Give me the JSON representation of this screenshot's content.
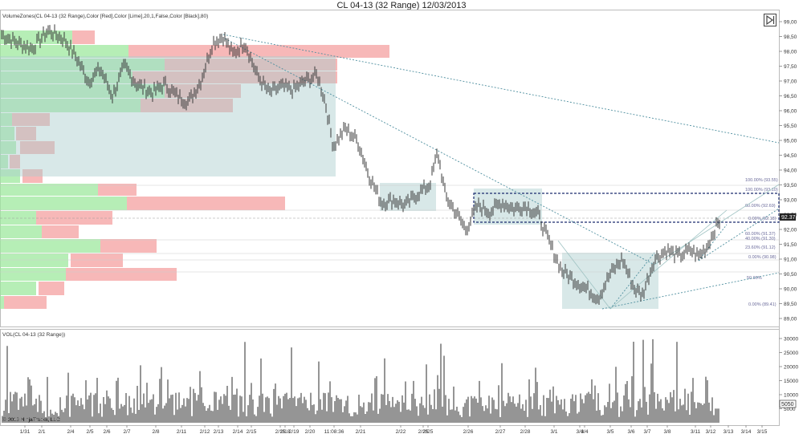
{
  "window": {
    "title": "CL 04-13 (32 Range)  12/03/2013"
  },
  "price_panel": {
    "label": "VolumeZones(CL 04-13 (32 Range),Color [Red],Color [Lime],20,1,False,Color [Black],80)",
    "current_price_label": "92.37",
    "fib_labels": [
      "100.00% (93.55)",
      "100.00% (93.10)",
      "60.00% (92.69)",
      "0.00% (92.18)",
      "60.00% (91.37)",
      "40.00% (91.30)",
      "23.60% (91.12)",
      "0.00% (90.98)",
      "50.00%",
      "0.00% (89.41)"
    ]
  },
  "volume_panel": {
    "label": "VOL(CL 04-13 (32 Range))",
    "last_value_label": "5050"
  },
  "copyright": "© 2013 NinjaTrader, LLC",
  "colors": {
    "buy_zone": "#9ee89e",
    "sell_zone": "#f4a0a0",
    "value_area": "#a9cccc",
    "trendline": "#4f8f9f",
    "bars": "#3a3a3a",
    "fib_box": "#1a2a6e"
  },
  "chart_data": [
    {
      "type": "line",
      "title": "CL 04-13 (32 Range)  12/03/2013",
      "ylim": [
        88.5,
        99.25
      ],
      "y_ticks": [
        99.0,
        98.5,
        98.0,
        97.5,
        97.0,
        96.5,
        96.0,
        95.5,
        95.0,
        94.5,
        94.0,
        93.5,
        93.0,
        92.5,
        92.0,
        91.5,
        91.0,
        90.5,
        90.0,
        89.5,
        89.0
      ],
      "y_tick_labels": [
        "99,00",
        "98,50",
        "98,00",
        "97,50",
        "97,00",
        "96,50",
        "96,00",
        "95,50",
        "95,00",
        "94,50",
        "94,00",
        "93,50",
        "93,00",
        "92,50",
        "92,00",
        "91,50",
        "91,00",
        "90,50",
        "90,00",
        "89,50",
        "89,00"
      ],
      "x_tick_labels": [
        "1/31",
        "2/1",
        "2/4",
        "2/5",
        "2/6",
        "2/7",
        "2/8",
        "2/11",
        "2/12",
        "2/13",
        "2/14",
        "2/15",
        "2/15",
        "2/18",
        "2/19",
        "2/20",
        "11:08:36",
        "2/21",
        "2/22",
        "2/25",
        "2/25",
        "2/26",
        "2/27",
        "2/28",
        "3/1",
        "3/4",
        "3/4",
        "3/5",
        "3/6",
        "3/7",
        "3/8",
        "3/11",
        "3/12",
        "3/13",
        "3/14",
        "3/15"
      ],
      "close_anchors": [
        [
          0,
          98.6
        ],
        [
          20,
          98.3
        ],
        [
          40,
          98.1
        ],
        [
          60,
          98.7
        ],
        [
          80,
          98.4
        ],
        [
          95,
          97.8
        ],
        [
          110,
          97.0
        ],
        [
          125,
          97.4
        ],
        [
          140,
          96.5
        ],
        [
          155,
          97.5
        ],
        [
          170,
          96.9
        ],
        [
          190,
          96.6
        ],
        [
          205,
          96.9
        ],
        [
          220,
          96.5
        ],
        [
          235,
          96.3
        ],
        [
          250,
          97.0
        ],
        [
          265,
          98.3
        ],
        [
          278,
          98.5
        ],
        [
          290,
          97.9
        ],
        [
          305,
          98.3
        ],
        [
          320,
          97.2
        ],
        [
          335,
          96.6
        ],
        [
          350,
          96.8
        ],
        [
          365,
          96.7
        ],
        [
          380,
          97.0
        ],
        [
          395,
          97.2
        ],
        [
          405,
          96.3
        ],
        [
          415,
          94.8
        ],
        [
          430,
          95.4
        ],
        [
          445,
          95.0
        ],
        [
          460,
          93.8
        ],
        [
          475,
          92.9
        ],
        [
          490,
          93.0
        ],
        [
          505,
          92.8
        ],
        [
          520,
          93.2
        ],
        [
          535,
          93.5
        ],
        [
          545,
          94.6
        ],
        [
          555,
          93.1
        ],
        [
          565,
          92.7
        ],
        [
          580,
          92.0
        ],
        [
          595,
          92.8
        ],
        [
          610,
          92.6
        ],
        [
          625,
          92.9
        ],
        [
          640,
          92.7
        ],
        [
          655,
          92.8
        ],
        [
          670,
          92.5
        ],
        [
          685,
          91.5
        ],
        [
          700,
          90.6
        ],
        [
          715,
          90.3
        ],
        [
          730,
          90.0
        ],
        [
          745,
          89.7
        ],
        [
          760,
          90.5
        ],
        [
          775,
          91.0
        ],
        [
          790,
          90.0
        ],
        [
          800,
          89.8
        ],
        [
          815,
          91.0
        ],
        [
          830,
          91.3
        ],
        [
          845,
          91.1
        ],
        [
          860,
          91.3
        ],
        [
          870,
          91.1
        ],
        [
          880,
          91.4
        ],
        [
          890,
          92.0
        ],
        [
          897,
          92.3
        ]
      ]
    },
    {
      "type": "bar",
      "title": "VOL(CL 04-13 (32 Range))",
      "ylim": [
        0,
        33000
      ],
      "y_ticks": [
        30000,
        25000,
        20000,
        15000,
        10000,
        5000
      ],
      "y_tick_labels": [
        "30000",
        "25000",
        "20000",
        "15000",
        "10000",
        "5000"
      ],
      "last_value": 5050
    }
  ]
}
